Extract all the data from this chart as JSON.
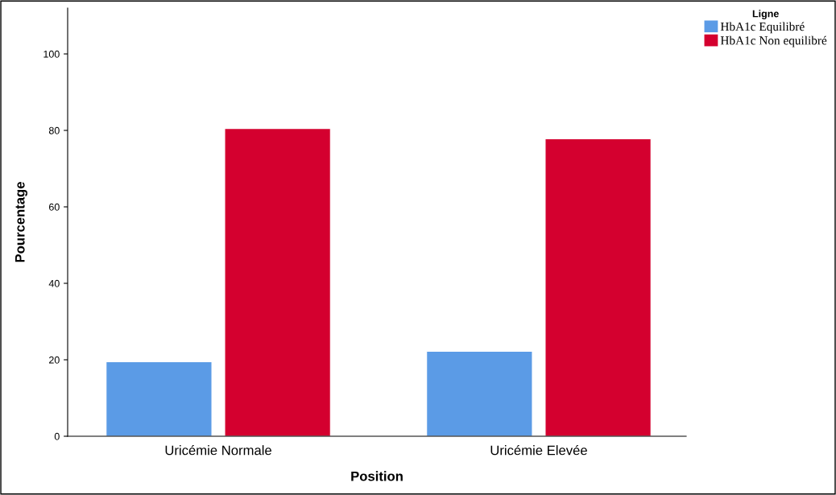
{
  "chart_data": {
    "type": "bar",
    "xlabel": "Position",
    "ylabel": "Pourcentage",
    "legend_title": "Ligne",
    "categories": [
      "Uricémie Normale",
      "Uricémie Elevée"
    ],
    "series": [
      {
        "name": "HbA1c Equilibré",
        "color": "#5b9be6",
        "values": [
          19.5,
          22.2
        ]
      },
      {
        "name": "HbA1c Non equilibré",
        "color": "#d4002f",
        "values": [
          80.5,
          77.8
        ]
      }
    ],
    "ylim": [
      0,
      112
    ],
    "yticks": [
      0,
      20,
      40,
      60,
      80,
      100
    ],
    "grid": false,
    "legend": "top right"
  }
}
